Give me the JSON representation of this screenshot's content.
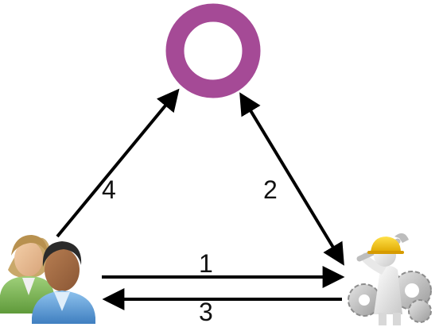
{
  "nodes": {
    "hub": {
      "icon": "ring-icon",
      "color": "#a54a96"
    },
    "users": {
      "icon": "users-group-icon"
    },
    "technician": {
      "icon": "technician-with-wrench-icon"
    }
  },
  "edges": [
    {
      "id": "1",
      "label": "1",
      "from": "users",
      "to": "technician",
      "direction": "one-way"
    },
    {
      "id": "2",
      "label": "2",
      "from": "hub",
      "to": "technician",
      "direction": "two-way"
    },
    {
      "id": "3",
      "label": "3",
      "from": "technician",
      "to": "users",
      "direction": "one-way"
    },
    {
      "id": "4",
      "label": "4",
      "from": "users",
      "to": "hub",
      "direction": "one-way"
    }
  ],
  "colors": {
    "arrow": "#000000",
    "label": "#111111"
  }
}
